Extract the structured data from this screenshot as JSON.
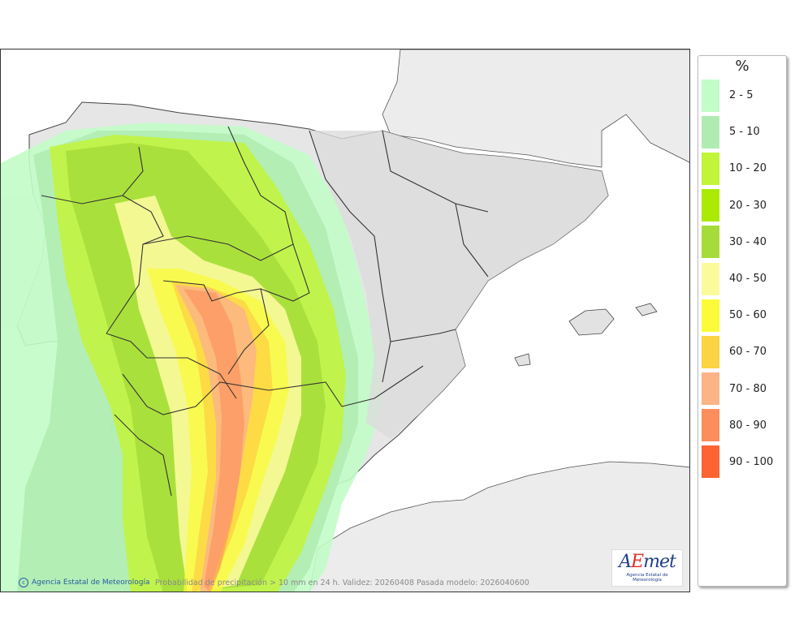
{
  "legend": {
    "unit": "%",
    "classes": [
      {
        "label": "2 - 5",
        "color": "#c2fcc8"
      },
      {
        "label": "5 - 10",
        "color": "#b0ecb2"
      },
      {
        "label": "10 - 20",
        "color": "#c2f53a"
      },
      {
        "label": "20 - 30",
        "color": "#aaea05"
      },
      {
        "label": "30 - 40",
        "color": "#a6dc3a"
      },
      {
        "label": "40 - 50",
        "color": "#fbfb9c"
      },
      {
        "label": "50 - 60",
        "color": "#fbfb3a"
      },
      {
        "label": "60 - 70",
        "color": "#fcd342"
      },
      {
        "label": "70 - 80",
        "color": "#fcb486"
      },
      {
        "label": "80 - 90",
        "color": "#fc8d5c"
      },
      {
        "label": "90 - 100",
        "color": "#fc6432"
      }
    ]
  },
  "credit": "Agencia Estatal de Meteorología",
  "caption": "Probabilidad de precipitación > 10 mm en 24 h. Validez: 20260408 Pasada modelo: 2026040600",
  "logo": {
    "text": "AEmet",
    "subtitle": "Agencia Estatal de Meteorología"
  }
}
